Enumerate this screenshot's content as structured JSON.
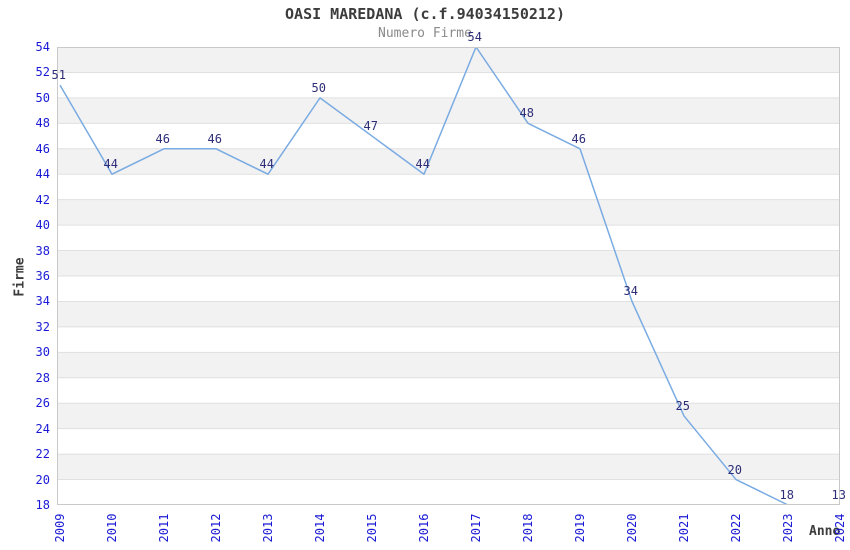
{
  "chart_data": {
    "type": "line",
    "title": "OASI MAREDANA (c.f.94034150212)",
    "subtitle": "Numero Firme",
    "xlabel": "Anno",
    "ylabel": "Firme",
    "categories": [
      "2009",
      "2010",
      "2011",
      "2012",
      "2013",
      "2014",
      "2015",
      "2016",
      "2017",
      "2018",
      "2019",
      "2020",
      "2021",
      "2022",
      "2023",
      "2024"
    ],
    "series": [
      {
        "name": "Numero Firme",
        "values": [
          51,
          44,
          46,
          46,
          44,
          50,
          47,
          44,
          54,
          48,
          46,
          34,
          25,
          20,
          18,
          13
        ]
      }
    ],
    "ylim": [
      18,
      54
    ],
    "ytick_step": 2,
    "grid": "horizontal",
    "stripes": "alternating 2-unit bands, gray band directly below y=54",
    "legend_position": "none",
    "point_labels_visible": true,
    "colors": {
      "line": "#7aabe2",
      "tick_label": "#1a1ad6",
      "point_label": "#2e2e78",
      "title": "#3c3c3c",
      "subtitle": "#8a8a8a",
      "axis_title": "#3c3c3c",
      "stripe": "#f2f2f2",
      "gridline": "#e0e0e0",
      "plot_border": "#c9c9c9",
      "background": "#ffffff"
    }
  }
}
